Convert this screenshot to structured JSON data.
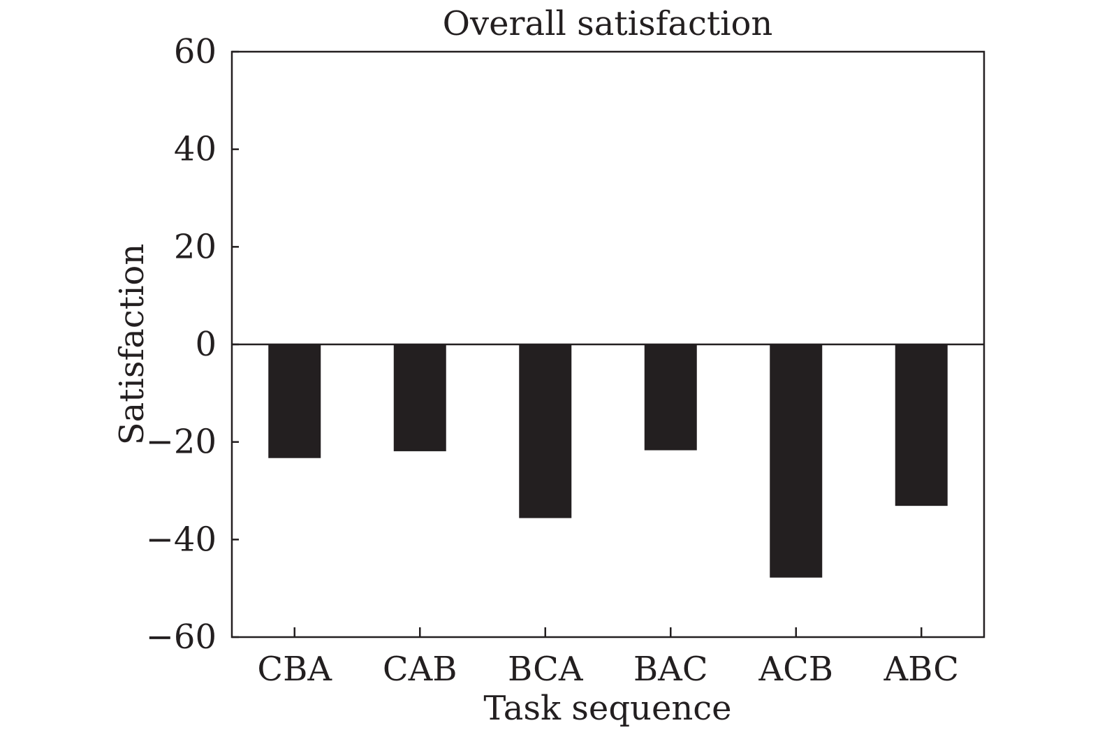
{
  "chart_data": {
    "type": "bar",
    "title": "Overall satisfaction",
    "xlabel": "Task sequence",
    "ylabel": "Satisfaction",
    "categories": [
      "CBA",
      "CAB",
      "BCA",
      "BAC",
      "ACB",
      "ABC"
    ],
    "values": [
      -23.3,
      -21.9,
      -35.6,
      -21.7,
      -47.8,
      -33.1
    ],
    "ylim": [
      -60,
      60
    ],
    "yticks": [
      60,
      40,
      20,
      0,
      -20,
      -40,
      -60
    ],
    "ytick_labels": [
      "60",
      "40",
      "20",
      "0",
      "−20",
      "−40",
      "−60"
    ],
    "grid": false,
    "legend": "none",
    "bar_color": "#231f20",
    "axis_color": "#231f20"
  }
}
